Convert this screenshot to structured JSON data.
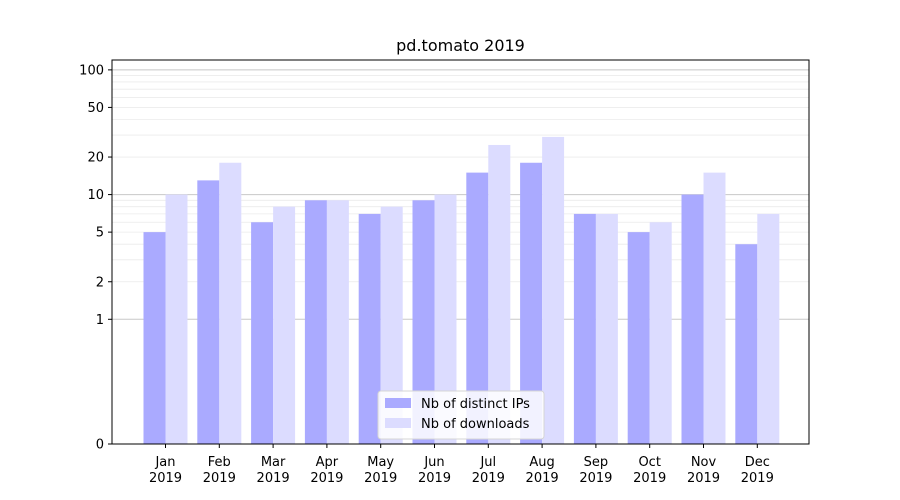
{
  "chart_data": {
    "type": "bar",
    "title": "pd.tomato 2019",
    "xlabel": "",
    "ylabel": "",
    "yscale": "symlog",
    "ylim": [
      0,
      120
    ],
    "yticks": [
      0,
      1,
      2,
      5,
      10,
      20,
      50,
      100
    ],
    "ytick_labels": [
      "0",
      "1",
      "2",
      "5",
      "10",
      "20",
      "50",
      "100"
    ],
    "categories": [
      [
        "Jan",
        "2019"
      ],
      [
        "Feb",
        "2019"
      ],
      [
        "Mar",
        "2019"
      ],
      [
        "Apr",
        "2019"
      ],
      [
        "May",
        "2019"
      ],
      [
        "Jun",
        "2019"
      ],
      [
        "Jul",
        "2019"
      ],
      [
        "Aug",
        "2019"
      ],
      [
        "Sep",
        "2019"
      ],
      [
        "Oct",
        "2019"
      ],
      [
        "Nov",
        "2019"
      ],
      [
        "Dec",
        "2019"
      ]
    ],
    "series": [
      {
        "name": "Nb of distinct IPs",
        "color": "#aaaaff",
        "values": [
          5,
          13,
          6,
          9,
          7,
          9,
          15,
          18,
          7,
          5,
          10,
          4
        ]
      },
      {
        "name": "Nb of downloads",
        "color": "#dcdcff",
        "values": [
          10,
          18,
          8,
          9,
          8,
          10,
          25,
          29,
          7,
          6,
          15,
          7
        ]
      }
    ],
    "grid": true,
    "legend_position": "lower-center"
  }
}
